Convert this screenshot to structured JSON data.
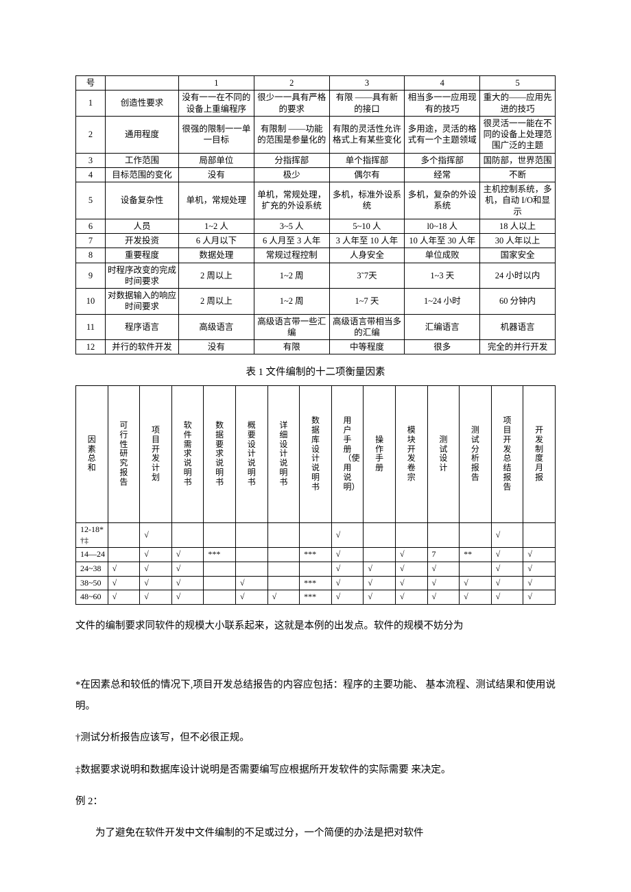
{
  "table1": {
    "header": [
      "号",
      "",
      "1",
      "2",
      "3",
      "4",
      "5"
    ],
    "rows": [
      [
        "1",
        "创造性要求",
        "没有一一在不同的设备上重编程序",
        "很少一一具有严格的要求",
        "有限 ——具有新的接口",
        "相当多一一应用现有的技巧",
        "重大的——应用先进的技巧"
      ],
      [
        "2",
        "通用程度",
        "很强的限制一一单一目标",
        "有限制 ——功能的范围是参量化的",
        "有限的灵活性允许格式上有某些变化",
        "多用途，灵活的格式有一个主题领域",
        "很灵活一一能在不同的设备上处理范围广泛的主题"
      ],
      [
        "3",
        "工作范围",
        "局部单位",
        "分指挥部",
        "单个指挥部",
        "多个指挥部",
        "国防部，世界范围"
      ],
      [
        "4",
        "目标范围的变化",
        "没有",
        "极少",
        "偶尔有",
        "经常",
        "不断"
      ],
      [
        "5",
        "设备复杂性",
        "单机，常规处理",
        "单机，常规处理，扩充的外设系统",
        "多机，标准外设系统",
        "多机，复杂的外设系统",
        "主机控制系统，多机，自动 I/O和显示"
      ],
      [
        "6",
        "人员",
        "1~2 人",
        "3~5 人",
        "5~10 人",
        "l0~18 人",
        "18 人以上"
      ],
      [
        "7",
        "开发投资",
        "6 人月以下",
        "6 人月至 3 人年",
        "3 人年至 10 人年",
        "10 人年至 30 人年",
        "30 人年以上"
      ],
      [
        "8",
        "重要程度",
        "数据处理",
        "常规过程控制",
        "人身安全",
        "单位成败",
        "国家安全"
      ],
      [
        "9",
        "时程序改变的完成时间要求",
        "2 周以上",
        "1~2 周",
        "3˜7天",
        "1~3 天",
        "24 小时以内"
      ],
      [
        "10",
        "对数据输入的响应时间要求",
        "2 周以上",
        "1~2 周",
        "1~7 天",
        "1~24 小时",
        "60 分钟内"
      ],
      [
        "11",
        "程序语言",
        "高级语言",
        "高级语言带一些汇编",
        "高级语言带相当多的汇编",
        "汇编语言",
        "机器语言"
      ],
      [
        "12",
        "并行的软件开发",
        "没有",
        "有限",
        "中等程度",
        "很多",
        "完全的并行开发"
      ]
    ]
  },
  "caption1": "表 1 文件编制的十二项衡量因素",
  "table2": {
    "headers": [
      "因素总和",
      "可行性研究报告",
      "项目开发计划",
      "软件需求说明书",
      "数据要求说明书",
      "概要设计说明书",
      "详细设计说明书",
      "数据库设计说明书",
      "用户手册（使用说明）",
      "操作手册",
      "模块开发卷宗",
      "测试设计",
      "测试分析报告",
      "项目开发总结报告",
      "开发制度月报"
    ],
    "rows": [
      [
        "12-18*†‡",
        "",
        "√",
        "",
        "",
        "",
        "",
        "",
        "√",
        "",
        "",
        "",
        "",
        "√",
        ""
      ],
      [
        "14—24",
        "",
        "√",
        "√",
        "***",
        "",
        "",
        "***",
        "√",
        "",
        "√",
        "7",
        "**",
        "√",
        "√"
      ],
      [
        "24~38",
        "√",
        "√",
        "√",
        "",
        "",
        "",
        "",
        "√",
        "√",
        "√",
        "√",
        "",
        "√",
        "√"
      ],
      [
        "38~50",
        "√",
        "√",
        "√",
        "",
        "√",
        "",
        "***",
        "√",
        "√",
        "√",
        "√",
        "√",
        "√",
        "√"
      ],
      [
        "48~60",
        "√",
        "√",
        "√",
        "",
        "√",
        "√",
        "***",
        "√",
        "√",
        "√",
        "√",
        "√",
        "√",
        "√"
      ]
    ]
  },
  "paragraphs": {
    "p1": "文件的编制要求同软件的规模大小联系起来，这就是本例的出发点。软件的规模不妨分为",
    "p2": "*在因素总和较低的情况下,项目开发总结报告的内容应包括：程序的主要功能、 基本流程、测试结果和使用说明。",
    "p3": "†测试分析报告应该写，但不必很正规。",
    "p4": "‡数据要求说明和数据库设计说明是否需要编写应根据所开发软件的实际需要 来决定。",
    "p5": "例 2：",
    "p6": "为了避免在软件开发中文件编制的不足或过分，一个简便的办法是把对软件"
  }
}
